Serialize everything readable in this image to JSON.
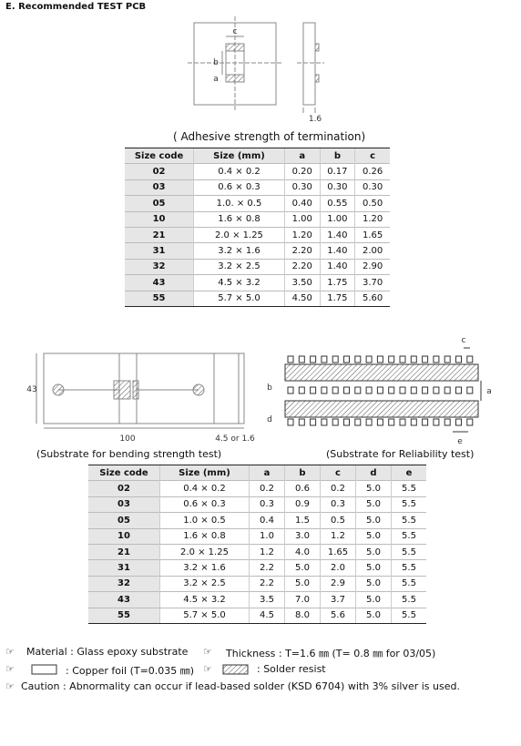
{
  "title": "E. Recommended TEST PCB",
  "figure1": {
    "labels": [
      "c",
      "b",
      "a",
      "1.6"
    ],
    "caption": "( Adhesive strength of termination)"
  },
  "table1": {
    "header": [
      "Size code",
      "Size (mm)",
      "a",
      "b",
      "c"
    ],
    "rows": [
      [
        "02",
        "0.4 × 0.2",
        "0.20",
        "0.17",
        "0.26"
      ],
      [
        "03",
        "0.6 × 0.3",
        "0.30",
        "0.30",
        "0.30"
      ],
      [
        "05",
        "1.0. × 0.5",
        "0.40",
        "0.55",
        "0.50"
      ],
      [
        "10",
        "1.6 × 0.8",
        "1.00",
        "1.00",
        "1.20"
      ],
      [
        "21",
        "2.0 × 1.25",
        "1.20",
        "1.40",
        "1.65"
      ],
      [
        "31",
        "3.2 × 1.6",
        "2.20",
        "1.40",
        "2.00"
      ],
      [
        "32",
        "3.2 × 2.5",
        "2.20",
        "1.40",
        "2.90"
      ],
      [
        "43",
        "4.5 × 3.2",
        "3.50",
        "1.75",
        "3.70"
      ],
      [
        "55",
        "5.7 × 5.0",
        "4.50",
        "1.75",
        "5.60"
      ]
    ]
  },
  "figure2": {
    "labels": [
      "43",
      "100",
      "4.5 or 1.6"
    ],
    "caption": "(Substrate for bending strength test)"
  },
  "figure3": {
    "labels": [
      "c",
      "b",
      "a",
      "d",
      "e"
    ],
    "caption": "(Substrate for Reliability test)"
  },
  "table2": {
    "header": [
      "Size code",
      "Size (mm)",
      "a",
      "b",
      "c",
      "d",
      "e"
    ],
    "rows": [
      [
        "02",
        "0.4 × 0.2",
        "0.2",
        "0.6",
        "0.2",
        "5.0",
        "5.5"
      ],
      [
        "03",
        "0.6 × 0.3",
        "0.3",
        "0.9",
        "0.3",
        "5.0",
        "5.5"
      ],
      [
        "05",
        "1.0 × 0.5",
        "0.4",
        "1.5",
        "0.5",
        "5.0",
        "5.5"
      ],
      [
        "10",
        "1.6 × 0.8",
        "1.0",
        "3.0",
        "1.2",
        "5.0",
        "5.5"
      ],
      [
        "21",
        "2.0 × 1.25",
        "1.2",
        "4.0",
        "1.65",
        "5.0",
        "5.5"
      ],
      [
        "31",
        "3.2 × 1.6",
        "2.2",
        "5.0",
        "2.0",
        "5.0",
        "5.5"
      ],
      [
        "32",
        "3.2 × 2.5",
        "2.2",
        "5.0",
        "2.9",
        "5.0",
        "5.5"
      ],
      [
        "43",
        "4.5 × 3.2",
        "3.5",
        "7.0",
        "3.7",
        "5.0",
        "5.5"
      ],
      [
        "55",
        "5.7 × 5.0",
        "4.5",
        "8.0",
        "5.6",
        "5.0",
        "5.5"
      ]
    ]
  },
  "notes": {
    "marker": "☞",
    "material": "Material : Glass epoxy substrate",
    "thickness": "Thickness : T=1.6 ㎜ (T= 0.8 ㎜ for 03/05)",
    "copper": ": Copper foil (T=0.035 ㎜)",
    "resist": ": Solder resist",
    "caution": "Caution : Abnormality can occur if lead-based solder (KSD 6704) with 3% silver is used."
  }
}
